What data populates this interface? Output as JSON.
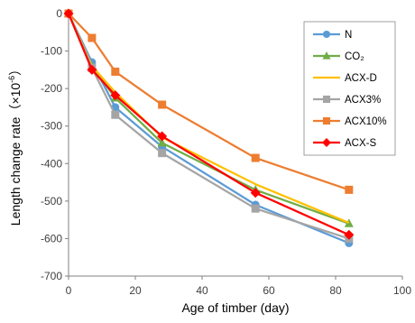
{
  "chart_data": {
    "type": "line",
    "xlabel": "Age of timber (day)",
    "ylabel": "Length change rate（×10",
    "ylabel_sup": "-6",
    "ylabel_tail": "）",
    "xlim": [
      0,
      100
    ],
    "ylim": [
      -700,
      0
    ],
    "xticks": [
      0,
      20,
      40,
      60,
      80,
      100
    ],
    "yticks": [
      0,
      -100,
      -200,
      -300,
      -400,
      -500,
      -600,
      -700
    ],
    "grid": false,
    "legend_position": "top-right",
    "x": [
      0,
      7,
      14,
      28,
      56,
      84
    ],
    "series": [
      {
        "name": "N",
        "color": "#5B9BD5",
        "marker": "circle",
        "values": [
          0,
          -130,
          -250,
          -355,
          -510,
          -612
        ]
      },
      {
        "name": "CO₂",
        "color": "#70AD47",
        "marker": "triangle",
        "values": [
          0,
          -140,
          -225,
          -345,
          -470,
          -560
        ]
      },
      {
        "name": "ACX-D",
        "color": "#FFC000",
        "marker": "none",
        "values": [
          0,
          -140,
          -210,
          -330,
          -455,
          -558
        ]
      },
      {
        "name": "ACX3%",
        "color": "#A5A5A5",
        "marker": "square",
        "values": [
          0,
          -145,
          -270,
          -372,
          -520,
          -600
        ]
      },
      {
        "name": "ACX10%",
        "color": "#ED7D31",
        "marker": "square",
        "values": [
          0,
          -65,
          -155,
          -243,
          -385,
          -470
        ]
      },
      {
        "name": "ACX-S",
        "color": "#FF0000",
        "marker": "diamond",
        "values": [
          0,
          -150,
          -218,
          -327,
          -478,
          -590
        ]
      }
    ]
  }
}
